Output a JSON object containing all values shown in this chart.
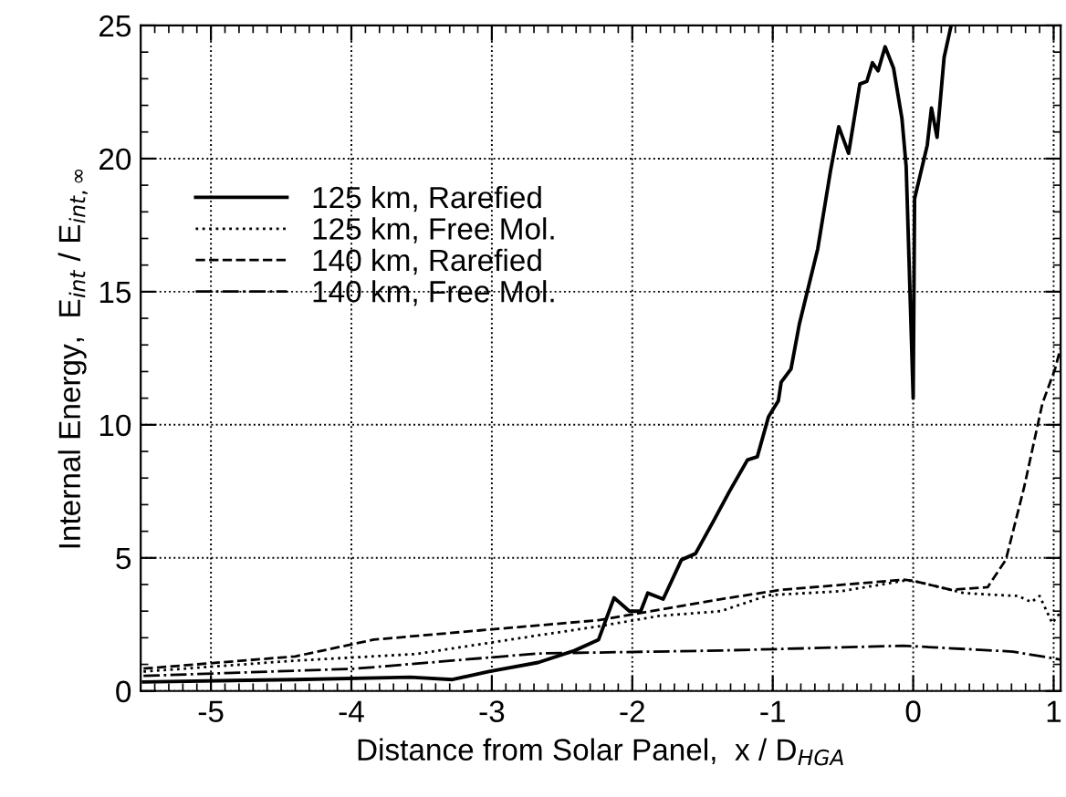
{
  "chart_data": {
    "type": "line",
    "xlabel": "Distance from Solar Panel,  x / D$_{HGA}$",
    "ylabel": "Internal Energy,  E$_{int}$ / E$_{int,∞}$",
    "xlim": [
      -5.5,
      1.05
    ],
    "ylim": [
      0,
      25
    ],
    "xticks": [
      -5,
      -4,
      -3,
      -2,
      -1,
      0,
      1
    ],
    "yticks": [
      0,
      5,
      10,
      15,
      20,
      25
    ],
    "grid": true,
    "legend": "top left",
    "series": [
      {
        "name": "125 km, Rarefied",
        "color": "#000000",
        "line_style": "solid",
        "x": [
          -5.48,
          -4.4,
          -3.58,
          -3.28,
          -3.02,
          -2.67,
          -2.41,
          -2.24,
          -2.13,
          -2.02,
          -1.94,
          -1.89,
          -1.78,
          -1.65,
          -1.55,
          -1.42,
          -1.31,
          -1.18,
          -1.11,
          -1.03,
          -0.96,
          -0.94,
          -0.87,
          -0.81,
          -0.68,
          -0.59,
          -0.53,
          -0.46,
          -0.38,
          -0.33,
          -0.29,
          -0.25,
          -0.2,
          -0.14,
          -0.08,
          -0.05,
          -0.02,
          0.0,
          0.01,
          0.1,
          0.13,
          0.17,
          0.22,
          0.27
        ],
        "values": [
          0.34,
          0.43,
          0.52,
          0.43,
          0.73,
          1.07,
          1.52,
          1.93,
          3.5,
          3.0,
          3.0,
          3.68,
          3.45,
          4.93,
          5.16,
          6.4,
          7.48,
          8.68,
          8.8,
          10.3,
          10.9,
          11.6,
          12.1,
          13.8,
          16.6,
          19.5,
          21.2,
          20.2,
          22.8,
          22.9,
          23.6,
          23.3,
          24.2,
          23.4,
          21.5,
          19.7,
          14.5,
          11.0,
          18.5,
          20.5,
          21.9,
          20.8,
          23.8,
          25.0
        ]
      },
      {
        "name": "125 km, Free Mol.",
        "color": "#000000",
        "line_style": "dotted",
        "x": [
          -5.48,
          -4.4,
          -3.54,
          -2.67,
          -2.24,
          -1.81,
          -1.37,
          -1.03,
          -0.51,
          -0.07,
          0.0,
          0.36,
          0.62,
          0.75,
          0.84,
          0.9,
          0.99,
          1.04
        ],
        "values": [
          0.73,
          1.14,
          1.39,
          2.09,
          2.43,
          2.82,
          3.0,
          3.6,
          3.75,
          4.14,
          4.14,
          3.68,
          3.6,
          3.57,
          3.34,
          3.57,
          2.55,
          2.9
        ]
      },
      {
        "name": "140 km, Rarefied",
        "color": "#000000",
        "line_style": "dashed",
        "x": [
          -5.48,
          -4.4,
          -3.84,
          -3.1,
          -2.24,
          -1.37,
          -0.94,
          -0.07,
          0.0,
          0.27,
          0.53,
          0.66,
          0.79,
          0.92,
          1.01,
          1.05
        ],
        "values": [
          0.84,
          1.3,
          1.93,
          2.27,
          2.66,
          3.45,
          3.8,
          4.18,
          4.14,
          3.8,
          3.9,
          4.93,
          7.66,
          10.8,
          12.1,
          12.9
        ]
      },
      {
        "name": "140 km, Free Mol.",
        "color": "#000000",
        "line_style": "dashdot",
        "x": [
          -5.48,
          -3.97,
          -2.67,
          -1.37,
          -0.07,
          0.71,
          1.05
        ],
        "values": [
          0.57,
          0.84,
          1.41,
          1.52,
          1.7,
          1.48,
          1.18
        ]
      }
    ]
  }
}
